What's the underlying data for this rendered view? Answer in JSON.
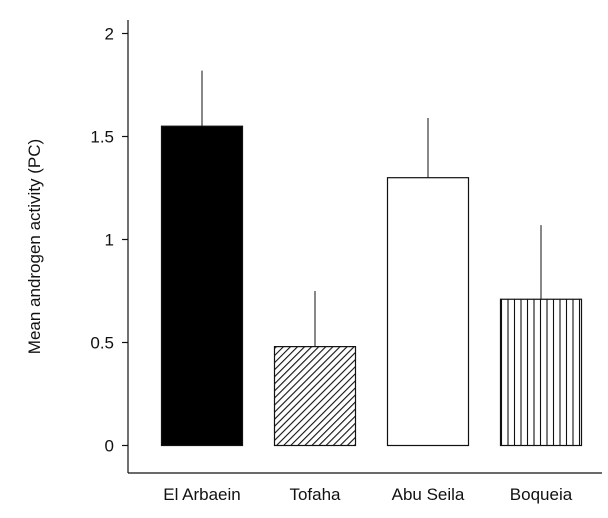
{
  "chart_data": {
    "type": "bar",
    "title": "",
    "xlabel": "",
    "ylabel": "Mean androgen activity (PC)",
    "ylim": [
      0,
      2
    ],
    "yticks": [
      0,
      0.5,
      1,
      1.5,
      2
    ],
    "ytick_labels": [
      "0",
      "0.5",
      "1",
      "1.5",
      "2"
    ],
    "grid": false,
    "legend": "none",
    "categories": [
      "El Arbaein",
      "Tofaha",
      "Abu Seila",
      "Boqueia"
    ],
    "values": [
      1.55,
      0.48,
      1.3,
      0.71
    ],
    "error_bars_upper": [
      0.27,
      0.27,
      0.29,
      0.36
    ],
    "bar_fills": [
      "solid",
      "diagonal-hatch",
      "empty",
      "vertical-lines"
    ],
    "colors": {
      "bar_edge": "#111111",
      "bar_solid": "#000000",
      "background": "#ffffff"
    }
  }
}
